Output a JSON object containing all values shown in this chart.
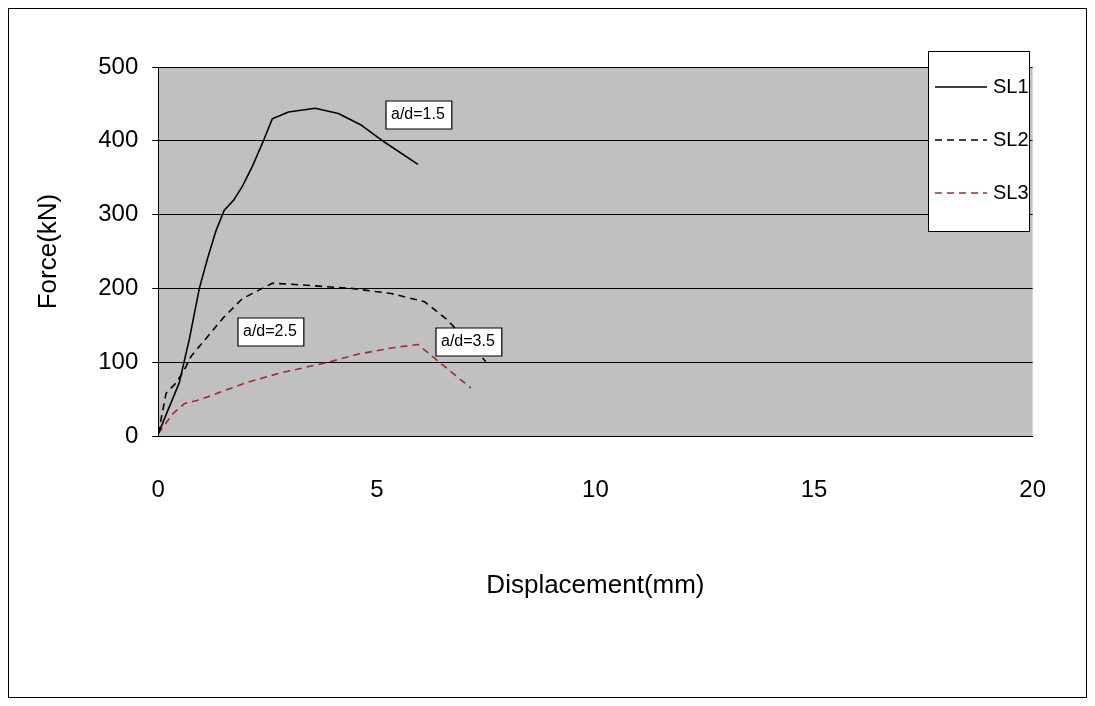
{
  "chart_data": {
    "type": "line",
    "xlabel": "Displacement(mm)",
    "ylabel": "Force(kN)",
    "xlim": [
      0,
      20
    ],
    "xticks": [
      0,
      5,
      10,
      15,
      20
    ],
    "ylim": [
      0,
      500
    ],
    "yticks": [
      0,
      100,
      200,
      300,
      400,
      500
    ],
    "grid": "y",
    "legend": "top right",
    "marker": "none",
    "annotations": [
      "a/d=1.5",
      "a/d=2.5",
      "a/d=3.5"
    ],
    "series": [
      {
        "name": "SL1",
        "color": "#000000",
        "line_style": "solid",
        "x": [
          0,
          0.48,
          0.71,
          0.94,
          1.13,
          1.32,
          1.51,
          1.73,
          1.92,
          2.15,
          2.42,
          2.61,
          2.98,
          3.59,
          4.12,
          4.65,
          5.18,
          5.94
        ],
        "values": [
          3,
          72,
          131,
          200,
          241,
          278,
          306,
          320,
          338,
          365,
          402,
          430,
          439,
          444,
          437,
          421,
          398,
          368
        ]
      },
      {
        "name": "SL2",
        "color": "#000000",
        "line_style": "dashed",
        "x": [
          0,
          0.18,
          0.41,
          0.6,
          0.75,
          1.02,
          1.47,
          1.92,
          2.61,
          3.21,
          4.42,
          5.33,
          6.09,
          6.62,
          7.49
        ],
        "values": [
          3,
          58,
          72,
          90,
          108,
          127,
          159,
          186,
          207,
          205,
          200,
          193,
          182,
          157,
          101
        ]
      },
      {
        "name": "SL3",
        "color": "#a52a2a",
        "line_style": "dashed",
        "x": [
          0,
          0.33,
          0.6,
          0.94,
          2,
          2.76,
          3.82,
          4.58,
          5.41,
          5.94,
          7.15
        ],
        "values": [
          3,
          30,
          44,
          49,
          72,
          85,
          99,
          111,
          120,
          124,
          65
        ]
      }
    ]
  }
}
